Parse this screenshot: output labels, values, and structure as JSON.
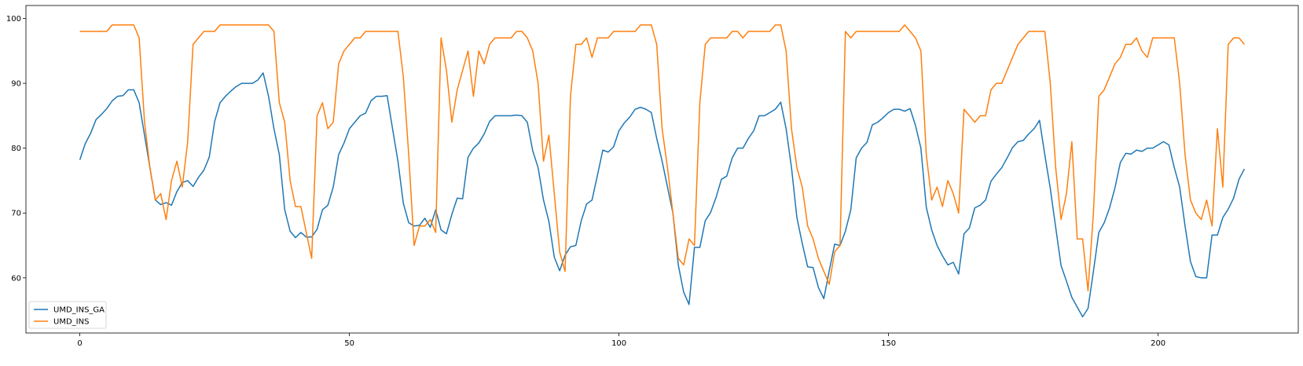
{
  "chart_data": {
    "type": "line",
    "title": "",
    "xlabel": "",
    "ylabel": "",
    "xlim": [
      -10,
      226
    ],
    "ylim": [
      51.5,
      102
    ],
    "grid": false,
    "legend_position": "lower-left",
    "x_ticks": [
      0,
      50,
      100,
      150,
      200
    ],
    "x_tick_labels": [
      "0",
      "50",
      "100",
      "150",
      "200"
    ],
    "y_ticks": [
      60,
      70,
      80,
      90,
      100
    ],
    "y_tick_labels": [
      "60",
      "70",
      "80",
      "90",
      "100"
    ],
    "series": [
      {
        "name": "UMD_INS_GA",
        "color": "#1f77b4",
        "x_start": 0,
        "values": [
          78.2,
          80.7,
          82.3,
          84.4,
          85.2,
          86.1,
          87.3,
          88,
          88.1,
          89,
          89,
          87,
          82,
          77,
          72,
          71.3,
          71.6,
          71.2,
          73.3,
          74.7,
          75,
          74.1,
          75.5,
          76.6,
          78.6,
          84.1,
          87,
          88,
          88.8,
          89.5,
          90,
          90,
          90,
          90.5,
          91.6,
          88,
          83,
          79,
          70.5,
          67.2,
          66.2,
          67,
          66.3,
          66.3,
          67.5,
          70.5,
          71.2,
          74,
          79,
          80.8,
          83,
          84,
          85,
          85.4,
          87.3,
          88,
          88,
          88.1,
          83,
          78,
          71.5,
          68.5,
          68,
          68.1,
          69.2,
          67.8,
          70.5,
          67.4,
          66.8,
          69.8,
          72.3,
          72.2,
          78.6,
          80,
          80.8,
          82.2,
          84.1,
          85,
          85,
          85,
          85,
          85.1,
          85,
          84,
          79.6,
          77,
          72,
          68.7,
          63.2,
          61.1,
          63.5,
          64.8,
          65,
          68.8,
          71.4,
          72,
          75.8,
          79.7,
          79.4,
          80.2,
          82.7,
          83.9,
          84.8,
          86,
          86.3,
          86,
          85.5,
          81.5,
          78,
          74,
          70,
          62,
          57.8,
          55.9,
          64.7,
          64.7,
          68.8,
          70.1,
          72.4,
          75.2,
          75.7,
          78.5,
          80,
          80,
          81.5,
          82.7,
          85,
          85,
          85.5,
          86,
          87.1,
          83,
          77,
          69.3,
          65.3,
          61.7,
          61.6,
          58.5,
          56.8,
          61.1,
          65.2,
          65,
          67.2,
          70.5,
          78.5,
          80,
          80.9,
          83.6,
          84,
          84.7,
          85.5,
          86,
          86,
          85.7,
          86.1,
          83.5,
          80,
          70.9,
          67.4,
          65,
          63.4,
          62,
          62.4,
          60.6,
          66.8,
          67.7,
          70.8,
          71.2,
          72,
          74.9,
          76,
          77,
          78.5,
          80.1,
          81,
          81.2,
          82.2,
          83,
          84.3,
          78.9,
          73.8,
          67.8,
          61.9,
          59.5,
          57,
          55.5,
          54,
          55.3,
          61,
          67,
          68.5,
          70.8,
          73.9,
          77.8,
          79.2,
          79.1,
          79.7,
          79.5,
          80,
          80,
          80.5,
          81,
          80.5,
          77,
          74,
          68,
          62.5,
          60.2,
          60,
          60,
          66.6,
          66.6,
          69.3,
          70.6,
          72.3,
          75.2,
          76.8
        ]
      },
      {
        "name": "UMD_INS",
        "color": "#ff7f0e",
        "x_start": 0,
        "values": [
          98,
          98,
          98,
          98,
          98,
          98,
          99,
          99,
          99,
          99,
          99,
          97,
          84,
          77,
          72,
          73,
          69,
          75,
          78,
          74,
          81,
          96,
          97,
          98,
          98,
          98,
          99,
          99,
          99,
          99,
          99,
          99,
          99,
          99,
          99,
          99,
          98,
          87,
          84,
          75,
          71,
          71,
          67,
          63,
          85,
          87,
          83,
          84,
          93,
          95,
          96,
          97,
          97,
          98,
          98,
          98,
          98,
          98,
          98,
          98,
          91,
          79,
          65,
          68,
          68,
          69,
          67,
          97,
          92,
          84,
          89,
          92,
          95,
          88,
          95,
          93,
          96,
          97,
          97,
          97,
          97,
          98,
          98,
          97,
          95,
          90,
          78,
          82,
          73,
          64,
          61,
          88,
          96,
          96,
          97,
          94,
          97,
          97,
          97,
          98,
          98,
          98,
          98,
          98,
          99,
          99,
          99,
          96,
          83,
          77,
          70,
          63,
          62,
          66,
          65,
          87,
          96,
          97,
          97,
          97,
          97,
          98,
          98,
          97,
          98,
          98,
          98,
          98,
          98,
          99,
          99,
          95,
          83,
          77,
          74,
          68,
          66,
          63,
          61,
          59,
          64,
          65,
          98,
          97,
          98,
          98,
          98,
          98,
          98,
          98,
          98,
          98,
          98,
          99,
          98,
          97,
          95,
          79,
          72,
          74,
          71,
          75,
          73,
          70,
          86,
          85,
          84,
          85,
          85,
          89,
          90,
          90,
          92,
          94,
          96,
          97,
          98,
          98,
          98,
          98,
          90,
          77,
          69,
          73,
          81,
          66,
          66,
          58,
          70,
          88,
          89,
          91,
          93,
          94,
          96,
          96,
          97,
          95,
          94,
          97,
          97,
          97,
          97,
          97,
          90,
          79,
          72,
          70,
          69,
          72,
          68,
          83,
          74,
          96,
          97,
          97,
          96
        ]
      }
    ]
  }
}
